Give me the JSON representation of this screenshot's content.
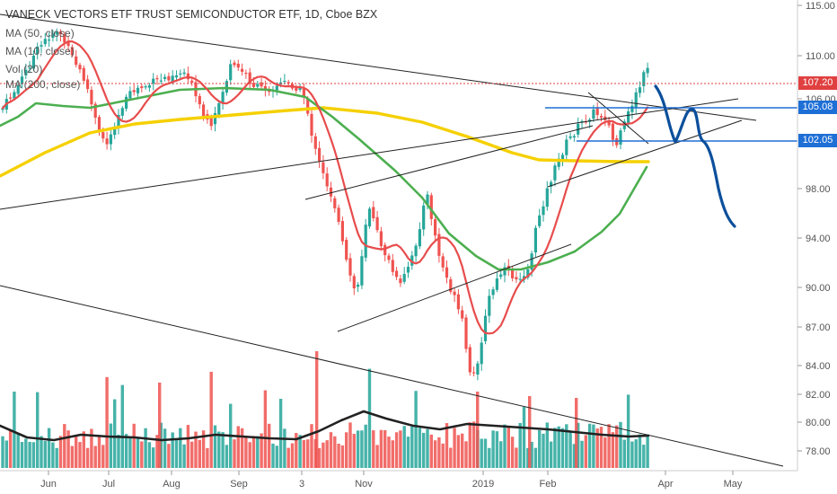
{
  "header": {
    "title": "VANECK VECTORS ETF TRUST SEMICONDUCTOR ETF, 1D, Cboe BZX",
    "indicators": [
      "MA (50, close)",
      "MA (10, close)",
      "Vol (20)",
      "MA (200, close)"
    ]
  },
  "colors": {
    "candle_up": "#26a69a",
    "candle_down": "#ef5350",
    "ma10": "#e84c4c",
    "ma50": "#4caf50",
    "ma200": "#f5d000",
    "projection": "#0b4f9c",
    "horizontal_level": "#1e6fd6",
    "current_price_tag": "#e04040",
    "level_tag": "#1e6fd6",
    "volume_avg": "#222222"
  },
  "chart_data": {
    "type": "candlestick",
    "title": "VANECK VECTORS ETF TRUST SEMICONDUCTOR ETF, 1D, Cboe BZX",
    "y_axis": {
      "position": "right",
      "ticks": [
        "115.00",
        "110.00",
        "106.00",
        "98.00",
        "94.00",
        "90.00",
        "87.00",
        "84.00",
        "82.00",
        "80.00",
        "78.00"
      ]
    },
    "x_axis": {
      "ticks": [
        "Jun",
        "Jul",
        "Aug",
        "Sep",
        "3",
        "Nov",
        "2019",
        "Feb",
        "Apr",
        "May"
      ]
    },
    "price_tags": [
      {
        "label": "107.20",
        "value": 107.2,
        "role": "current-price"
      },
      {
        "label": "105.08",
        "value": 105.08,
        "role": "resistance-level"
      },
      {
        "label": "102.05",
        "value": 102.05,
        "role": "support-level"
      }
    ],
    "moving_averages": [
      "MA 10",
      "MA 50",
      "MA 200"
    ],
    "annotations": {
      "trendlines": 7,
      "horizontal_levels": [
        105.08,
        102.05
      ],
      "projection": "hand-drawn blue path forecasting decline toward ~95 by early May"
    },
    "series_note": "Daily OHLC candles with volume histogram; price declines from ~107 (Sep) to ~81 low (late Dec), rallies to ~110 (mid Mar)."
  }
}
